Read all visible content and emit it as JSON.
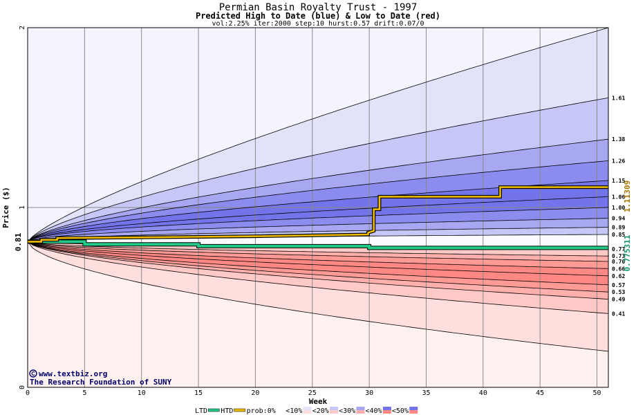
{
  "chart_data": {
    "type": "area",
    "title": "Permian Basin Royalty Trust - 1997",
    "subtitle": "Predicted High to Date (blue) &  Low to Date (red)",
    "params": "vol:2.25% iter:2000 step:10 hurst:0.57 drift:0.07/0",
    "xlabel": "Week",
    "ylabel": "Price ($)",
    "xlim": [
      0,
      51
    ],
    "ylim": [
      0,
      2
    ],
    "x_ticks": [
      0,
      5,
      10,
      15,
      20,
      25,
      30,
      35,
      40,
      45,
      50
    ],
    "y_ticks": [
      0,
      1,
      2
    ],
    "grid": true,
    "start_price": 0.81,
    "start_price_label": "0.81",
    "htd_final_label": "1.11309",
    "ltd_final_label": "0.775311",
    "colors": {
      "band_blue": [
        "#f4f4fe",
        "#e2e2fb",
        "#c6c6f7",
        "#a8a8f2",
        "#8c8cee",
        "#7474ea"
      ],
      "band_red": [
        "#fff1ef",
        "#ffdede",
        "#ffc9c7",
        "#ffb0ac",
        "#ff9a95",
        "#ff8884"
      ],
      "ltd": "#22cc88",
      "htd": "#eebb00"
    },
    "high_bands": [
      {
        "end": 2.0,
        "k": 0.78
      },
      {
        "end": 1.61,
        "k": 0.72,
        "label": "1.61"
      },
      {
        "end": 1.38,
        "k": 0.68,
        "label": "1.38"
      },
      {
        "end": 1.26,
        "k": 0.64,
        "label": "1.26"
      },
      {
        "end": 1.15,
        "k": 0.6,
        "label": "1.15"
      },
      {
        "end": 1.06,
        "k": 0.56,
        "label": "1.06"
      },
      {
        "end": 1.0,
        "k": 0.52,
        "label": "1.00"
      },
      {
        "end": 0.94,
        "k": 0.5,
        "label": "0.94"
      },
      {
        "end": 0.89,
        "k": 0.48,
        "label": "0.89"
      },
      {
        "end": 0.85,
        "k": 0.46,
        "label": "0.85"
      }
    ],
    "low_bands": [
      {
        "end": 0.77,
        "k": 0.5,
        "label": "0.77"
      },
      {
        "end": 0.73,
        "k": 0.5,
        "label": "0.73"
      },
      {
        "end": 0.7,
        "k": 0.52,
        "label": "0.70"
      },
      {
        "end": 0.66,
        "k": 0.54,
        "label": "0.66"
      },
      {
        "end": 0.62,
        "k": 0.56,
        "label": "0.62"
      },
      {
        "end": 0.57,
        "k": 0.58,
        "label": "0.57"
      },
      {
        "end": 0.53,
        "k": 0.6,
        "label": "0.53"
      },
      {
        "end": 0.49,
        "k": 0.62,
        "label": "0.49"
      },
      {
        "end": 0.41,
        "k": 0.64,
        "label": "0.41"
      },
      {
        "end": 0.2,
        "k": 0.6
      }
    ],
    "htd_series": {
      "name": "HTD",
      "x": [
        0,
        1.2,
        1.2,
        2.6,
        2.6,
        12,
        20,
        29.9,
        29.9,
        30.4,
        30.4,
        30.9,
        30.9,
        41.5,
        41.5,
        51
      ],
      "y": [
        0.81,
        0.81,
        0.82,
        0.82,
        0.83,
        0.835,
        0.84,
        0.85,
        0.86,
        0.87,
        0.99,
        0.99,
        1.06,
        1.06,
        1.11309,
        1.11309
      ]
    },
    "ltd_series": {
      "name": "LTD",
      "x": [
        0,
        5,
        5,
        15,
        15,
        30,
        30,
        51
      ],
      "y": [
        0.81,
        0.81,
        0.795,
        0.795,
        0.785,
        0.785,
        0.775311,
        0.775311
      ]
    },
    "legend": {
      "placement": "bottom",
      "items": [
        "LTD",
        "HTD",
        "prob:0%",
        "<10%",
        "<20%",
        "<30%",
        "<40%",
        "<50%"
      ]
    }
  },
  "credits": {
    "site": "www.textbiz.org",
    "org": "The Research Foundation of SUNY"
  }
}
